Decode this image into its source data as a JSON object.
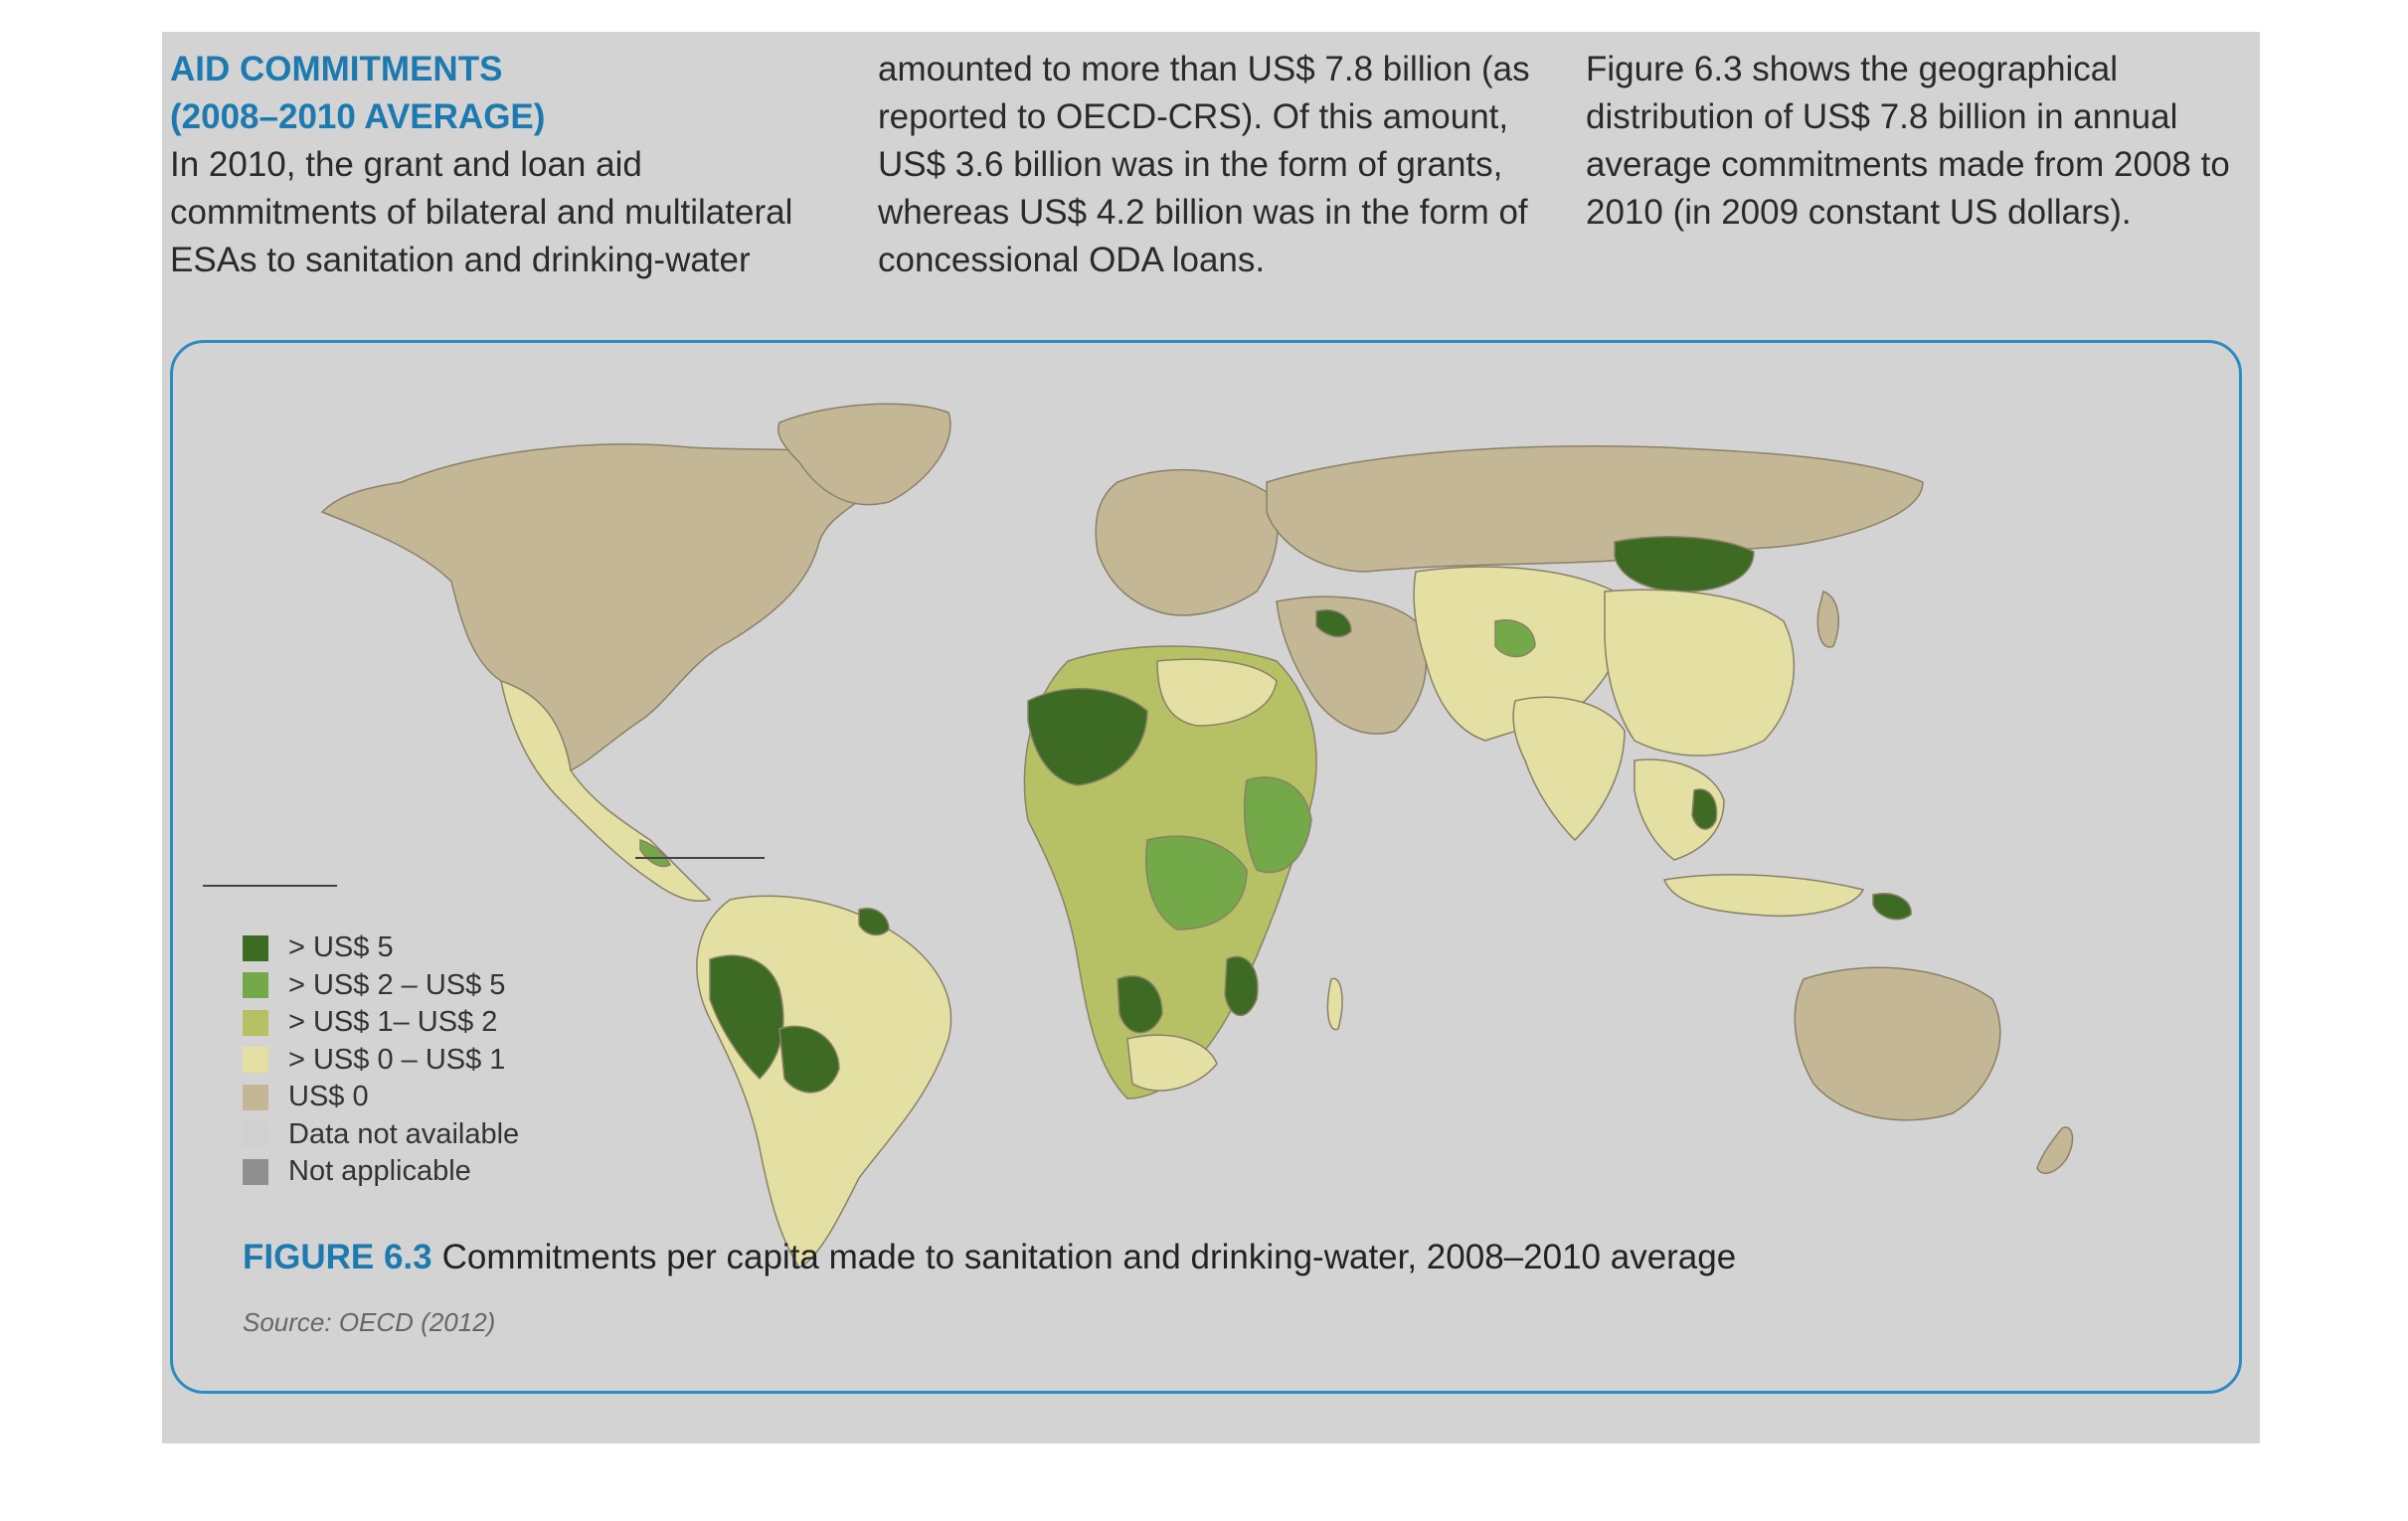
{
  "article": {
    "heading_line1": "AID COMMITMENTS",
    "heading_line2": "(2008–2010 AVERAGE)",
    "col1_text": "In 2010, the grant and loan aid commitments of bilateral and multilateral ESAs to sanitation and drinking-water",
    "col2_text": "amounted to more than US$ 7.8 billion (as reported to OECD-CRS). Of this amount, US$ 3.6 billion was in the form of grants, whereas US$ 4.2 billion was in the form of concessional ODA loans.",
    "col3_text": "Figure 6.3 shows the geographical distribution of US$ 7.8 billion in annual average commitments made from 2008 to 2010 (in 2009 constant US dollars)."
  },
  "figure": {
    "number": "FIGURE 6.3",
    "caption": "Commitments per capita made to sanitation and drinking-water, 2008–2010 average",
    "source": "Source: OECD (2012)"
  },
  "legend": [
    {
      "label": "> US$ 5",
      "color": "#3e6b24"
    },
    {
      "label": "> US$ 2 – US$ 5",
      "color": "#74a94a"
    },
    {
      "label": "> US$ 1– US$ 2",
      "color": "#b5c164"
    },
    {
      "label": "> US$ 0 – US$ 1",
      "color": "#e4dfa2"
    },
    {
      "label": "US$ 0",
      "color": "#c4b796"
    },
    {
      "label": "Data not available",
      "color": "#d0d0d0"
    },
    {
      "label": "Not applicable",
      "color": "#8f8f8f"
    }
  ],
  "colors": {
    "accent": "#1d7ab0",
    "map_border": "#2a8cc4",
    "background": "#d3d3d3"
  }
}
